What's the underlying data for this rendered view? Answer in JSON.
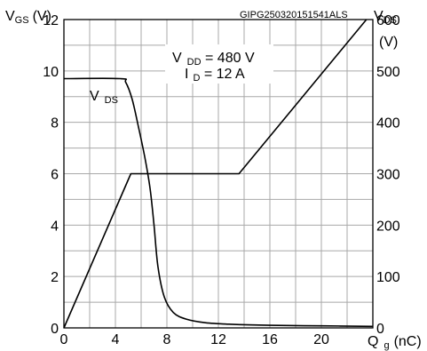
{
  "chart_data": {
    "type": "line",
    "x_axis": {
      "label_main": "Q",
      "label_sub": "g",
      "label_unit": "(nC)",
      "range": [
        0,
        24
      ],
      "ticks": [
        0,
        4,
        8,
        12,
        16,
        20
      ],
      "minor_step": 2
    },
    "y_left": {
      "label_main": "V",
      "label_sub": "GS",
      "label_unit": "(V)",
      "range": [
        0,
        12
      ],
      "ticks": [
        0,
        2,
        4,
        6,
        8,
        10,
        12
      ],
      "minor_step": 1
    },
    "y_right": {
      "label_main": "V",
      "label_sub": "DS",
      "label_unit": "(V)",
      "range": [
        0,
        600
      ],
      "ticks": [
        0,
        100,
        200,
        300,
        400,
        500,
        600
      ]
    },
    "grid": true,
    "watermark": "GIPG250320151541ALS",
    "annotations": {
      "vdd_main": "V",
      "vdd_sub": "DD",
      "vdd_value": " = 480 V",
      "id_main": "I",
      "id_sub": "D",
      "id_value": " = 12 A"
    },
    "series": [
      {
        "name": "V_GS",
        "axis": "left",
        "x": [
          0,
          5.2,
          13.6,
          23.5
        ],
        "y": [
          0,
          6,
          6,
          12
        ]
      },
      {
        "name": "V_DS",
        "label_main": "V",
        "label_sub": "DS",
        "axis": "right",
        "x": [
          0,
          4.4,
          4.8,
          5.3,
          5.8,
          6.3,
          6.7,
          7.0,
          7.3,
          7.8,
          8.5,
          9.5,
          11,
          13,
          16,
          20,
          24
        ],
        "y": [
          485,
          485,
          478,
          445,
          390,
          330,
          270,
          200,
          120,
          60,
          30,
          17,
          10,
          7,
          5,
          4,
          3
        ]
      }
    ]
  }
}
